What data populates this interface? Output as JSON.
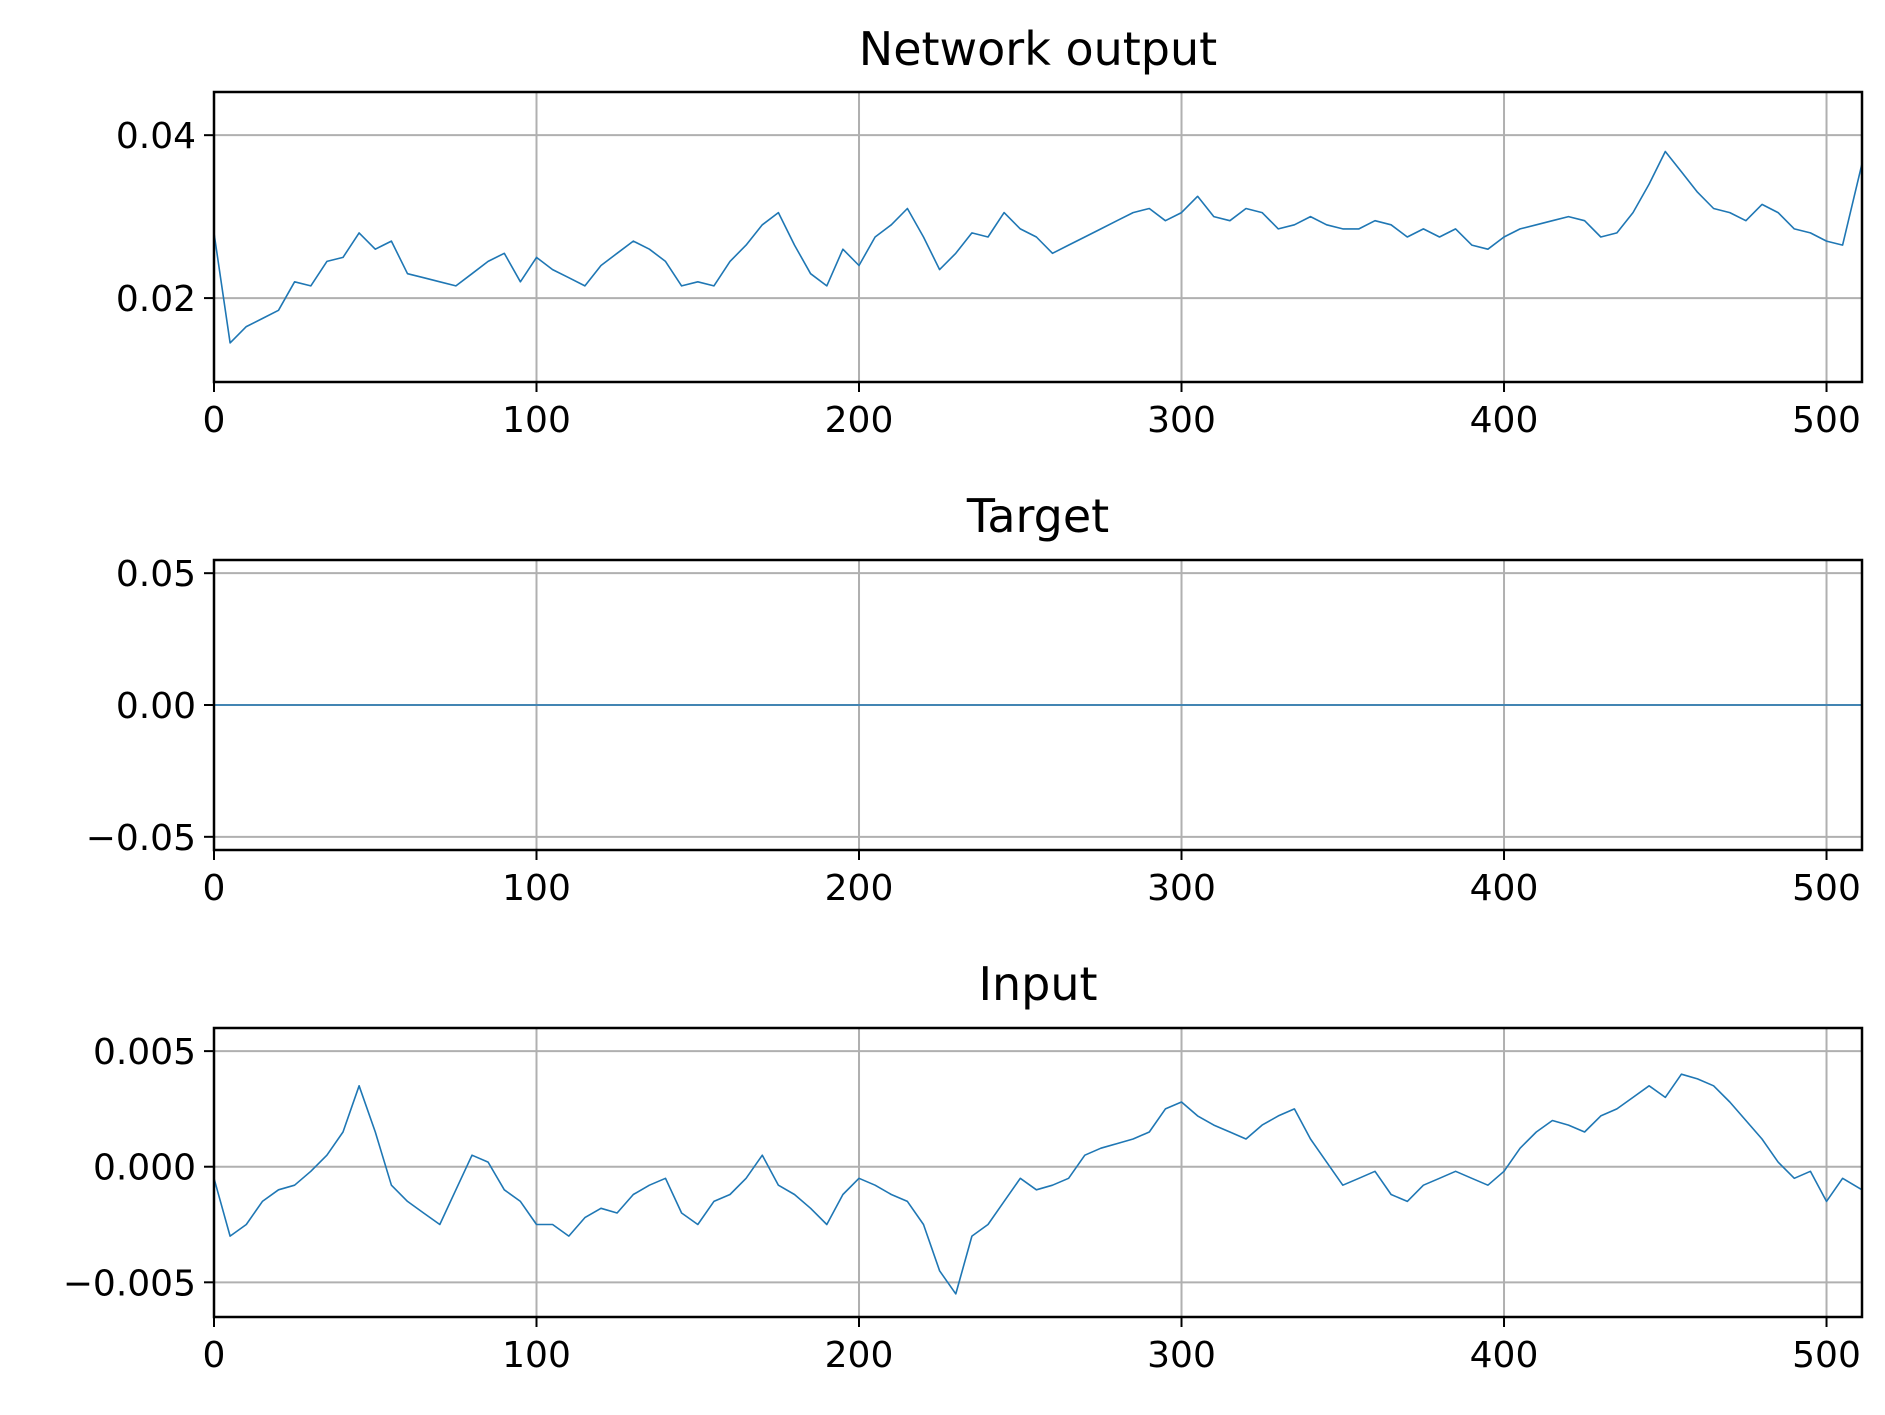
{
  "chart_data": [
    {
      "type": "line",
      "title": "Network output",
      "xlabel": "",
      "ylabel": "",
      "xlim": [
        0,
        511
      ],
      "ylim": [
        0.0097,
        0.0453
      ],
      "grid": true,
      "color": "#1f77b4",
      "x_ticks": [
        {
          "value": 0,
          "label": "0"
        },
        {
          "value": 100,
          "label": "100"
        },
        {
          "value": 200,
          "label": "200"
        },
        {
          "value": 300,
          "label": "300"
        },
        {
          "value": 400,
          "label": "400"
        },
        {
          "value": 500,
          "label": "500"
        }
      ],
      "y_ticks": [
        {
          "value": 0.02,
          "label": "0.02"
        },
        {
          "value": 0.04,
          "label": "0.04"
        }
      ],
      "series": [
        {
          "x": [
            0,
            5,
            10,
            15,
            20,
            25,
            30,
            35,
            40,
            45,
            50,
            55,
            60,
            65,
            70,
            75,
            80,
            85,
            90,
            95,
            100,
            105,
            110,
            115,
            120,
            125,
            130,
            135,
            140,
            145,
            150,
            155,
            160,
            165,
            170,
            175,
            180,
            185,
            190,
            195,
            200,
            205,
            210,
            215,
            220,
            225,
            230,
            235,
            240,
            245,
            250,
            255,
            260,
            265,
            270,
            275,
            280,
            285,
            290,
            295,
            300,
            305,
            310,
            315,
            320,
            325,
            330,
            335,
            340,
            345,
            350,
            355,
            360,
            365,
            370,
            375,
            380,
            385,
            390,
            395,
            400,
            405,
            410,
            415,
            420,
            425,
            430,
            435,
            440,
            445,
            450,
            455,
            460,
            465,
            470,
            475,
            480,
            485,
            490,
            495,
            500,
            505,
            511
          ],
          "values": [
            0.028,
            0.0145,
            0.0165,
            0.0175,
            0.0185,
            0.022,
            0.0215,
            0.0245,
            0.025,
            0.028,
            0.026,
            0.027,
            0.023,
            0.0225,
            0.022,
            0.0215,
            0.023,
            0.0245,
            0.0255,
            0.022,
            0.025,
            0.0235,
            0.0225,
            0.0215,
            0.024,
            0.0255,
            0.027,
            0.026,
            0.0245,
            0.0215,
            0.022,
            0.0215,
            0.0245,
            0.0265,
            0.029,
            0.0305,
            0.0265,
            0.023,
            0.0215,
            0.026,
            0.024,
            0.0275,
            0.029,
            0.031,
            0.0275,
            0.0235,
            0.0255,
            0.028,
            0.0275,
            0.0305,
            0.0285,
            0.0275,
            0.0255,
            0.0265,
            0.0275,
            0.0285,
            0.0295,
            0.0305,
            0.031,
            0.0295,
            0.0305,
            0.0325,
            0.03,
            0.0295,
            0.031,
            0.0305,
            0.0285,
            0.029,
            0.03,
            0.029,
            0.0285,
            0.0285,
            0.0295,
            0.029,
            0.0275,
            0.0285,
            0.0275,
            0.0285,
            0.0265,
            0.026,
            0.0275,
            0.0285,
            0.029,
            0.0295,
            0.03,
            0.0295,
            0.0275,
            0.028,
            0.0305,
            0.034,
            0.038,
            0.0355,
            0.033,
            0.031,
            0.0305,
            0.0295,
            0.0315,
            0.0305,
            0.0285,
            0.028,
            0.027,
            0.0265,
            0.0365
          ]
        }
      ]
    },
    {
      "type": "line",
      "title": "Target",
      "xlabel": "",
      "ylabel": "",
      "xlim": [
        0,
        511
      ],
      "ylim": [
        -0.055,
        0.055
      ],
      "grid": true,
      "color": "#1f77b4",
      "x_ticks": [
        {
          "value": 0,
          "label": "0"
        },
        {
          "value": 100,
          "label": "100"
        },
        {
          "value": 200,
          "label": "200"
        },
        {
          "value": 300,
          "label": "300"
        },
        {
          "value": 400,
          "label": "400"
        },
        {
          "value": 500,
          "label": "500"
        }
      ],
      "y_ticks": [
        {
          "value": -0.05,
          "label": "−0.05"
        },
        {
          "value": 0,
          "label": "0.00"
        },
        {
          "value": 0.05,
          "label": "0.05"
        }
      ],
      "series": [
        {
          "x": [
            0,
            511
          ],
          "values": [
            0,
            0
          ]
        }
      ]
    },
    {
      "type": "line",
      "title": "Input",
      "xlabel": "",
      "ylabel": "",
      "xlim": [
        0,
        511
      ],
      "ylim": [
        -0.0065,
        0.006
      ],
      "grid": true,
      "color": "#1f77b4",
      "x_ticks": [
        {
          "value": 0,
          "label": "0"
        },
        {
          "value": 100,
          "label": "100"
        },
        {
          "value": 200,
          "label": "200"
        },
        {
          "value": 300,
          "label": "300"
        },
        {
          "value": 400,
          "label": "400"
        },
        {
          "value": 500,
          "label": "500"
        }
      ],
      "y_ticks": [
        {
          "value": -0.005,
          "label": "−0.005"
        },
        {
          "value": 0,
          "label": "0.000"
        },
        {
          "value": 0.005,
          "label": "0.005"
        }
      ],
      "series": [
        {
          "x": [
            0,
            5,
            10,
            15,
            20,
            25,
            30,
            35,
            40,
            45,
            50,
            55,
            60,
            65,
            70,
            75,
            80,
            85,
            90,
            95,
            100,
            105,
            110,
            115,
            120,
            125,
            130,
            135,
            140,
            145,
            150,
            155,
            160,
            165,
            170,
            175,
            180,
            185,
            190,
            195,
            200,
            205,
            210,
            215,
            220,
            225,
            230,
            235,
            240,
            245,
            250,
            255,
            260,
            265,
            270,
            275,
            280,
            285,
            290,
            295,
            300,
            305,
            310,
            315,
            320,
            325,
            330,
            335,
            340,
            345,
            350,
            355,
            360,
            365,
            370,
            375,
            380,
            385,
            390,
            395,
            400,
            405,
            410,
            415,
            420,
            425,
            430,
            435,
            440,
            445,
            450,
            455,
            460,
            465,
            470,
            475,
            480,
            485,
            490,
            495,
            500,
            505,
            511
          ],
          "values": [
            -0.0005,
            -0.003,
            -0.0025,
            -0.0015,
            -0.001,
            -0.0008,
            -0.0002,
            0.0005,
            0.0015,
            0.0035,
            0.0015,
            -0.0008,
            -0.0015,
            -0.002,
            -0.0025,
            -0.001,
            0.0005,
            0.0002,
            -0.001,
            -0.0015,
            -0.0025,
            -0.0025,
            -0.003,
            -0.0022,
            -0.0018,
            -0.002,
            -0.0012,
            -0.0008,
            -0.0005,
            -0.002,
            -0.0025,
            -0.0015,
            -0.0012,
            -0.0005,
            0.0005,
            -0.0008,
            -0.0012,
            -0.0018,
            -0.0025,
            -0.0012,
            -0.0005,
            -0.0008,
            -0.0012,
            -0.0015,
            -0.0025,
            -0.0045,
            -0.0055,
            -0.003,
            -0.0025,
            -0.0015,
            -0.0005,
            -0.001,
            -0.0008,
            -0.0005,
            0.0005,
            0.0008,
            0.001,
            0.0012,
            0.0015,
            0.0025,
            0.0028,
            0.0022,
            0.0018,
            0.0015,
            0.0012,
            0.0018,
            0.0022,
            0.0025,
            0.0012,
            0.0002,
            -0.0008,
            -0.0005,
            -0.0002,
            -0.0012,
            -0.0015,
            -0.0008,
            -0.0005,
            -0.0002,
            -0.0005,
            -0.0008,
            -0.0002,
            0.0008,
            0.0015,
            0.002,
            0.0018,
            0.0015,
            0.0022,
            0.0025,
            0.003,
            0.0035,
            0.003,
            0.004,
            0.0038,
            0.0035,
            0.0028,
            0.002,
            0.0012,
            0.0002,
            -0.0005,
            -0.0002,
            -0.0015,
            -0.0005,
            -0.001
          ]
        }
      ]
    }
  ]
}
